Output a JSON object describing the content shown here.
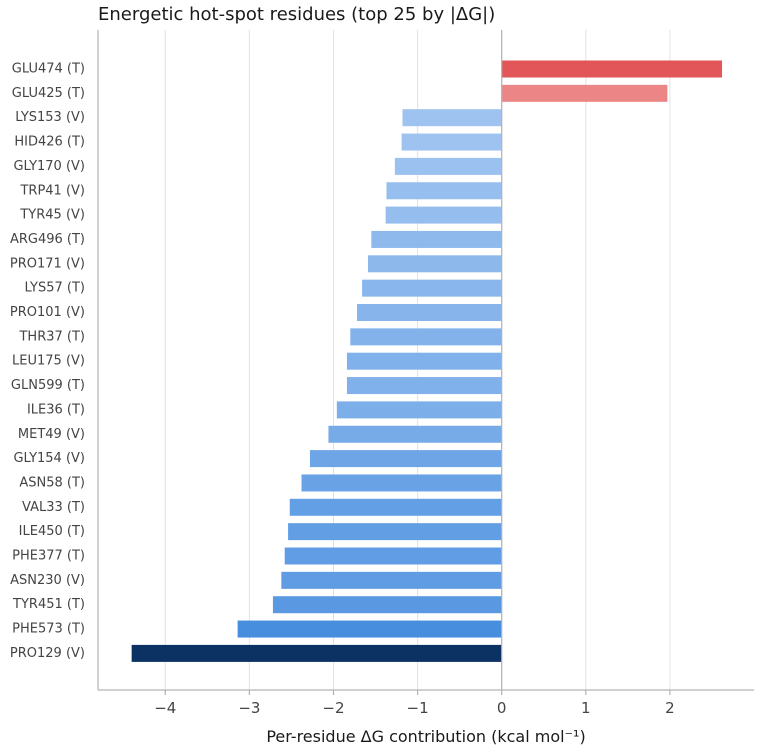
{
  "chart_data": {
    "type": "bar",
    "orientation": "horizontal",
    "title": "Energetic hot-spot residues (top 25 by |ΔG|)",
    "xlabel": "Per-residue ΔG contribution (kcal mol⁻¹)",
    "ylabel": "",
    "xlim": [
      -4.8,
      3.0
    ],
    "xticks": [
      -4,
      -3,
      -2,
      -1,
      0,
      1,
      2
    ],
    "xtick_labels": [
      "−4",
      "−3",
      "−2",
      "−1",
      "0",
      "1",
      "2"
    ],
    "grid": "vertical",
    "categories": [
      "GLU474 (T)",
      "GLU425 (T)",
      "LYS153 (V)",
      "HID426 (T)",
      "GLY170 (V)",
      "TRP41 (V)",
      "TYR45 (V)",
      "ARG496 (T)",
      "PRO171 (V)",
      "LYS57 (T)",
      "PRO101 (V)",
      "THR37 (T)",
      "LEU175 (V)",
      "GLN599 (T)",
      "ILE36 (T)",
      "MET49 (V)",
      "GLY154 (V)",
      "ASN58 (T)",
      "VAL33 (T)",
      "ILE450 (T)",
      "PHE377 (T)",
      "ASN230 (V)",
      "TYR451 (T)",
      "PHE573 (T)",
      "PRO129 (V)"
    ],
    "values": [
      2.62,
      1.97,
      -1.18,
      -1.19,
      -1.27,
      -1.37,
      -1.38,
      -1.55,
      -1.59,
      -1.66,
      -1.72,
      -1.8,
      -1.84,
      -1.84,
      -1.96,
      -2.06,
      -2.28,
      -2.38,
      -2.52,
      -2.54,
      -2.58,
      -2.62,
      -2.72,
      -3.14,
      -4.4
    ],
    "colors": {
      "positive_max": "#e25559",
      "positive_min": "#ec8686",
      "negative_min": "#9ec3f0",
      "negative_mid": "#3b86dc",
      "negative_max": "#0c3264",
      "axis": "#b3b3b3",
      "grid": "#e2e2e2"
    }
  }
}
